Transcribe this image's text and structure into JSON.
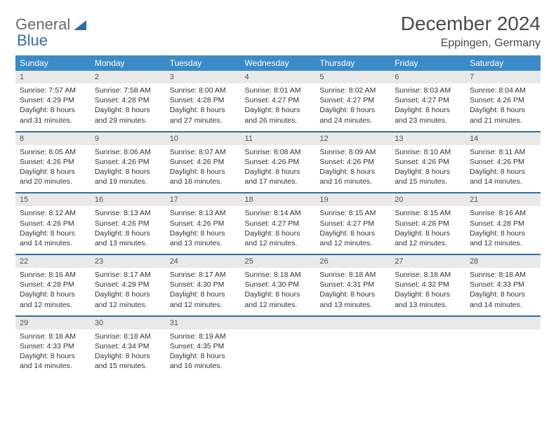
{
  "logo": {
    "word1": "General",
    "word2": "Blue"
  },
  "colors": {
    "header_bg": "#3b8bc8",
    "row_divider": "#2f6fa8",
    "daynum_bg": "#e9e9e9",
    "text": "#333333",
    "logo_gray": "#6b6b6b",
    "logo_blue": "#2f6fa8"
  },
  "title": "December 2024",
  "location": "Eppingen, Germany",
  "weekdays": [
    "Sunday",
    "Monday",
    "Tuesday",
    "Wednesday",
    "Thursday",
    "Friday",
    "Saturday"
  ],
  "weeks": [
    [
      {
        "n": "1",
        "sr": "7:57 AM",
        "ss": "4:29 PM",
        "dl": "8 hours and 31 minutes."
      },
      {
        "n": "2",
        "sr": "7:58 AM",
        "ss": "4:28 PM",
        "dl": "8 hours and 29 minutes."
      },
      {
        "n": "3",
        "sr": "8:00 AM",
        "ss": "4:28 PM",
        "dl": "8 hours and 27 minutes."
      },
      {
        "n": "4",
        "sr": "8:01 AM",
        "ss": "4:27 PM",
        "dl": "8 hours and 26 minutes."
      },
      {
        "n": "5",
        "sr": "8:02 AM",
        "ss": "4:27 PM",
        "dl": "8 hours and 24 minutes."
      },
      {
        "n": "6",
        "sr": "8:03 AM",
        "ss": "4:27 PM",
        "dl": "8 hours and 23 minutes."
      },
      {
        "n": "7",
        "sr": "8:04 AM",
        "ss": "4:26 PM",
        "dl": "8 hours and 21 minutes."
      }
    ],
    [
      {
        "n": "8",
        "sr": "8:05 AM",
        "ss": "4:26 PM",
        "dl": "8 hours and 20 minutes."
      },
      {
        "n": "9",
        "sr": "8:06 AM",
        "ss": "4:26 PM",
        "dl": "8 hours and 19 minutes."
      },
      {
        "n": "10",
        "sr": "8:07 AM",
        "ss": "4:26 PM",
        "dl": "8 hours and 18 minutes."
      },
      {
        "n": "11",
        "sr": "8:08 AM",
        "ss": "4:26 PM",
        "dl": "8 hours and 17 minutes."
      },
      {
        "n": "12",
        "sr": "8:09 AM",
        "ss": "4:26 PM",
        "dl": "8 hours and 16 minutes."
      },
      {
        "n": "13",
        "sr": "8:10 AM",
        "ss": "4:26 PM",
        "dl": "8 hours and 15 minutes."
      },
      {
        "n": "14",
        "sr": "8:11 AM",
        "ss": "4:26 PM",
        "dl": "8 hours and 14 minutes."
      }
    ],
    [
      {
        "n": "15",
        "sr": "8:12 AM",
        "ss": "4:26 PM",
        "dl": "8 hours and 14 minutes."
      },
      {
        "n": "16",
        "sr": "8:13 AM",
        "ss": "4:26 PM",
        "dl": "8 hours and 13 minutes."
      },
      {
        "n": "17",
        "sr": "8:13 AM",
        "ss": "4:26 PM",
        "dl": "8 hours and 13 minutes."
      },
      {
        "n": "18",
        "sr": "8:14 AM",
        "ss": "4:27 PM",
        "dl": "8 hours and 12 minutes."
      },
      {
        "n": "19",
        "sr": "8:15 AM",
        "ss": "4:27 PM",
        "dl": "8 hours and 12 minutes."
      },
      {
        "n": "20",
        "sr": "8:15 AM",
        "ss": "4:28 PM",
        "dl": "8 hours and 12 minutes."
      },
      {
        "n": "21",
        "sr": "8:16 AM",
        "ss": "4:28 PM",
        "dl": "8 hours and 12 minutes."
      }
    ],
    [
      {
        "n": "22",
        "sr": "8:16 AM",
        "ss": "4:28 PM",
        "dl": "8 hours and 12 minutes."
      },
      {
        "n": "23",
        "sr": "8:17 AM",
        "ss": "4:29 PM",
        "dl": "8 hours and 12 minutes."
      },
      {
        "n": "24",
        "sr": "8:17 AM",
        "ss": "4:30 PM",
        "dl": "8 hours and 12 minutes."
      },
      {
        "n": "25",
        "sr": "8:18 AM",
        "ss": "4:30 PM",
        "dl": "8 hours and 12 minutes."
      },
      {
        "n": "26",
        "sr": "8:18 AM",
        "ss": "4:31 PM",
        "dl": "8 hours and 13 minutes."
      },
      {
        "n": "27",
        "sr": "8:18 AM",
        "ss": "4:32 PM",
        "dl": "8 hours and 13 minutes."
      },
      {
        "n": "28",
        "sr": "8:18 AM",
        "ss": "4:33 PM",
        "dl": "8 hours and 14 minutes."
      }
    ],
    [
      {
        "n": "29",
        "sr": "8:18 AM",
        "ss": "4:33 PM",
        "dl": "8 hours and 14 minutes."
      },
      {
        "n": "30",
        "sr": "8:18 AM",
        "ss": "4:34 PM",
        "dl": "8 hours and 15 minutes."
      },
      {
        "n": "31",
        "sr": "8:19 AM",
        "ss": "4:35 PM",
        "dl": "8 hours and 16 minutes."
      },
      null,
      null,
      null,
      null
    ]
  ],
  "labels": {
    "sunrise": "Sunrise:",
    "sunset": "Sunset:",
    "daylight": "Daylight:"
  }
}
